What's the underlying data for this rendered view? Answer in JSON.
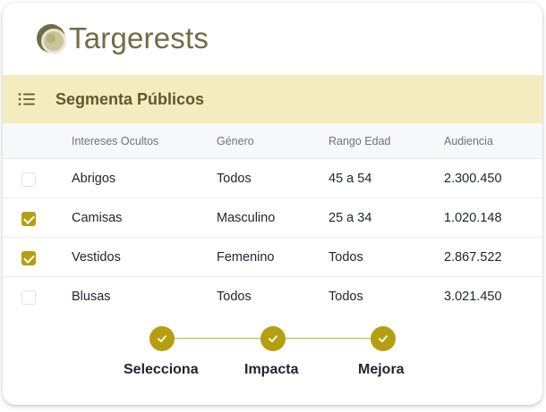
{
  "brand": {
    "name": "Targerests",
    "icon": "target-ring-icon"
  },
  "section": {
    "title": "Segmenta Públicos",
    "icon": "list-icon"
  },
  "table": {
    "headers": [
      "Intereses Ocultos",
      "Género",
      "Rango Edad",
      "Audiencia"
    ],
    "rows": [
      {
        "selected": false,
        "interest": "Abrigos",
        "gender": "Todos",
        "age": "45 a 54",
        "audience": "2.300.450"
      },
      {
        "selected": true,
        "interest": "Camisas",
        "gender": "Masculino",
        "age": "25 a 34",
        "audience": "1.020.148"
      },
      {
        "selected": true,
        "interest": "Vestidos",
        "gender": "Femenino",
        "age": "Todos",
        "audience": "2.867.522"
      },
      {
        "selected": false,
        "interest": "Blusas",
        "gender": "Todos",
        "age": "Todos",
        "audience": "3.021.450"
      }
    ]
  },
  "steps": [
    {
      "label": "Selecciona",
      "done": true
    },
    {
      "label": "Impacta",
      "done": true
    },
    {
      "label": "Mejora",
      "done": true
    }
  ],
  "colors": {
    "accent": "#b59f10",
    "brand": "#6f6c47",
    "section_bg": "#f4ecbf"
  }
}
